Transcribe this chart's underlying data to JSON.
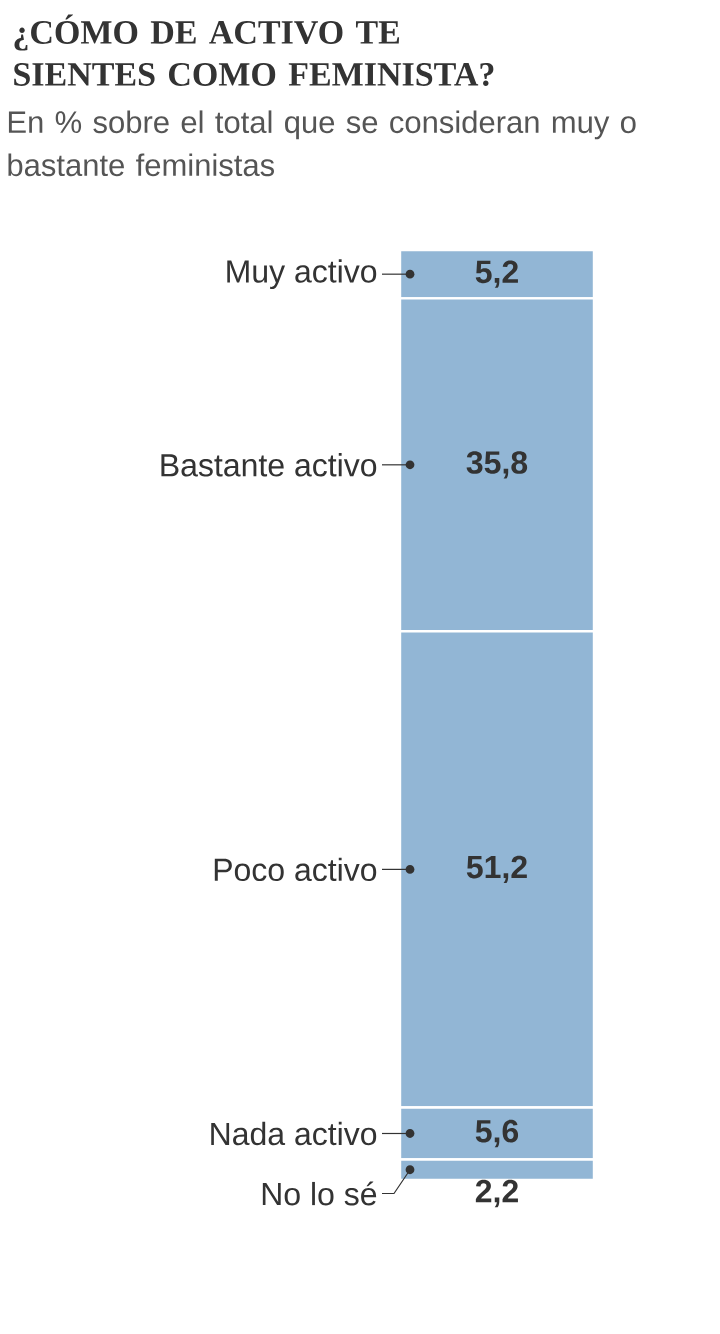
{
  "chart_data": {
    "type": "bar",
    "stacked": true,
    "title": "¿CÓMO DE ACTIVO TE SIENTES COMO FEMINISTA?",
    "subtitle": "En % sobre el total que se consideran muy o bastante feministas",
    "categories": [
      null
    ],
    "series": [
      {
        "name": "No lo sé",
        "color": "#92b6d5",
        "values": [
          2.2
        ],
        "value_labels": [
          "2,2"
        ]
      },
      {
        "name": "Nada activo",
        "color": "#92b6d5",
        "values": [
          5.6
        ],
        "value_labels": [
          "5,6"
        ]
      },
      {
        "name": "Poco activo",
        "color": "#92b6d5",
        "values": [
          51.2
        ],
        "value_labels": [
          "51,2"
        ]
      },
      {
        "name": "Bastante activo",
        "color": "#92b6d5",
        "values": [
          35.8
        ],
        "value_labels": [
          "35,8"
        ]
      },
      {
        "name": "Muy activo",
        "color": "#92b6d5",
        "values": [
          5.2
        ],
        "value_labels": [
          "5,2"
        ]
      }
    ]
  }
}
